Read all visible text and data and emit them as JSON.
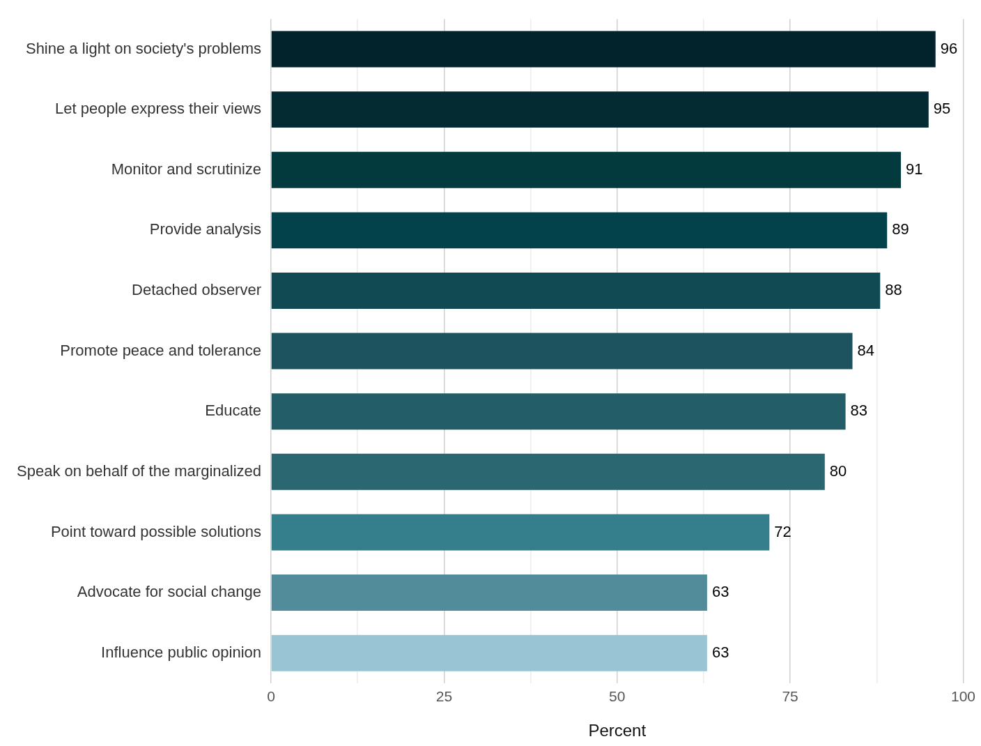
{
  "chart_data": {
    "type": "bar",
    "orientation": "horizontal",
    "xlabel": "Percent",
    "categories": [
      "Shine a light on society's problems",
      "Let people express their views",
      "Monitor and scrutinize",
      "Provide analysis",
      "Detached observer",
      "Promote peace and tolerance",
      "Educate",
      "Speak on behalf of the marginalized",
      "Point toward possible solutions",
      "Advocate for social change",
      "Influence public opinion"
    ],
    "values": [
      96,
      95,
      91,
      89,
      88,
      84,
      83,
      80,
      72,
      63,
      63
    ],
    "colors": [
      "#02232b",
      "#032b31",
      "#033a3e",
      "#03424a",
      "#114a52",
      "#1c535e",
      "#235e68",
      "#2a6771",
      "#347f8b",
      "#528c9a",
      "#98c4d4"
    ],
    "xlim": [
      0,
      100
    ],
    "xticks": [
      0,
      {
        "value": 12.5,
        "label": null
      },
      25,
      {
        "value": 37.5,
        "label": null
      },
      50,
      {
        "value": 62.5,
        "label": null
      },
      75,
      {
        "value": 87.5,
        "label": null
      },
      100
    ],
    "grid": "x",
    "data_labels": true,
    "legend": false
  }
}
